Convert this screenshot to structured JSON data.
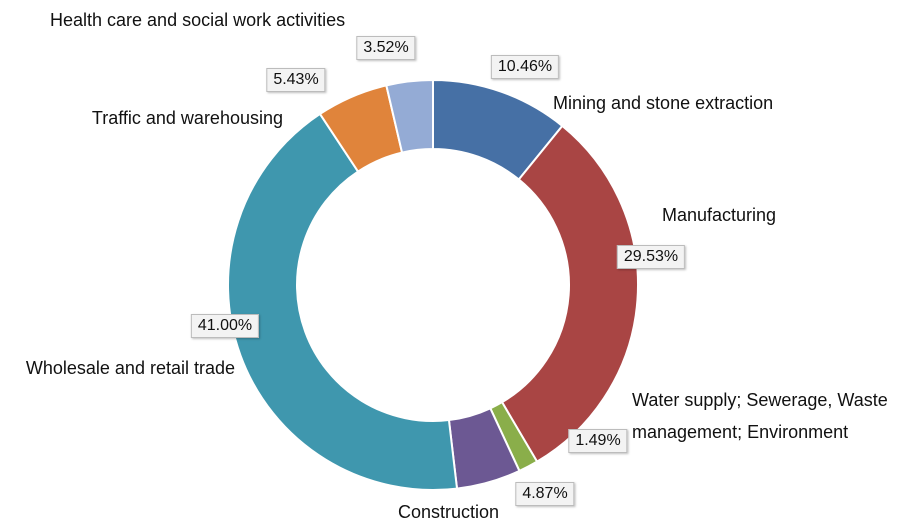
{
  "chart_data": {
    "type": "donut",
    "categories": [
      "Mining and stone extraction",
      "Manufacturing",
      "Water supply; Sewerage, Waste management; Environment",
      "Construction",
      "Wholesale and retail trade",
      "Traffic and warehousing",
      "Health care and social work activities"
    ],
    "values": [
      10.46,
      29.53,
      1.49,
      4.87,
      41.0,
      5.43,
      3.52
    ],
    "value_labels": [
      "10.46%",
      "29.53%",
      "1.49%",
      "4.87%",
      "41.00%",
      "5.43%",
      "3.52%"
    ],
    "colors": [
      "#4670a5",
      "#a94544",
      "#8aae4a",
      "#6c5893",
      "#3f97ae",
      "#e0843b",
      "#94abd5"
    ]
  }
}
